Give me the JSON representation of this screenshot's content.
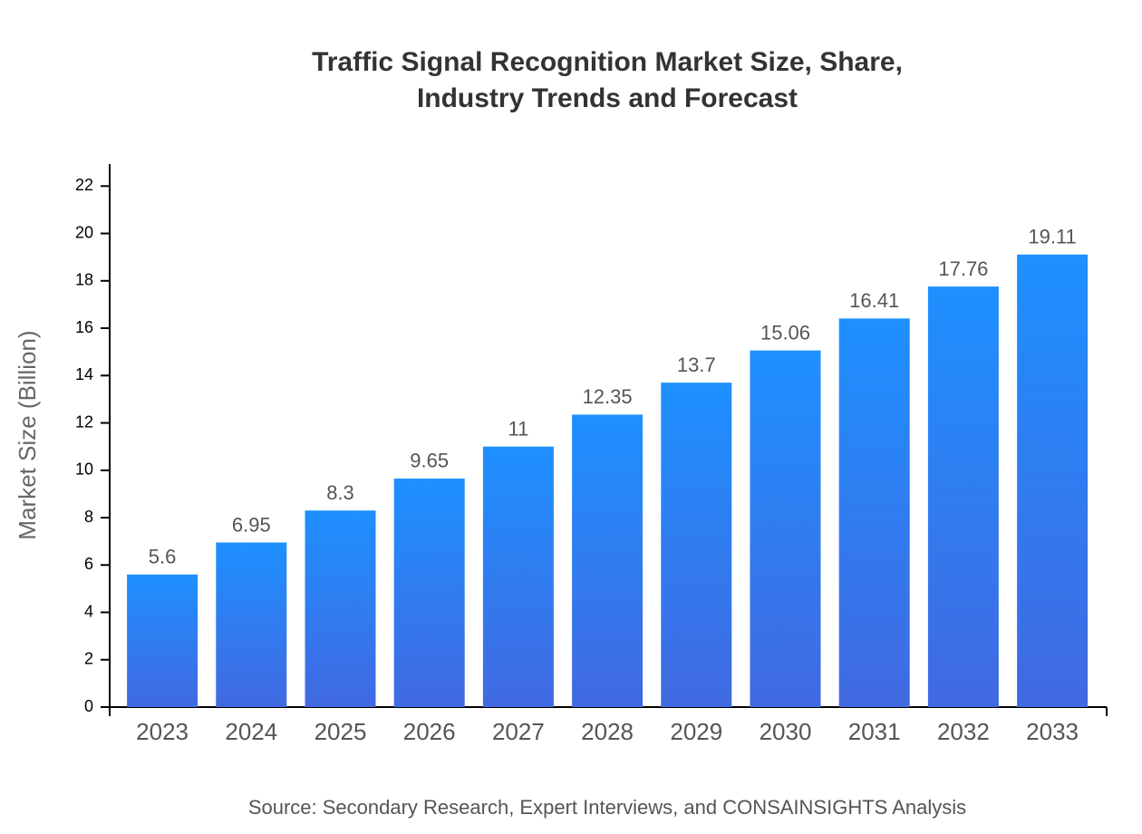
{
  "chart_data": {
    "type": "bar",
    "title": "Traffic Signal Recognition Market Size, Share,",
    "subtitle": "Industry Trends and Forecast",
    "y_label": "Market Size (Billion)",
    "source": "Source: Secondary Research, Expert Interviews, and CONSAINSIGHTS Analysis",
    "categories": [
      "2023",
      "2024",
      "2025",
      "2026",
      "2027",
      "2028",
      "2029",
      "2030",
      "2031",
      "2032",
      "2033"
    ],
    "values": [
      5.6,
      6.95,
      8.3,
      9.65,
      11,
      12.35,
      13.7,
      15.06,
      16.41,
      17.76,
      19.11
    ],
    "color": [
      "#1e90ff",
      "#4169e1"
    ],
    "ylim": [
      0,
      22.93
    ],
    "yticks": [
      0,
      2,
      4,
      6,
      8,
      10,
      12,
      14,
      16,
      18,
      20,
      22
    ]
  }
}
